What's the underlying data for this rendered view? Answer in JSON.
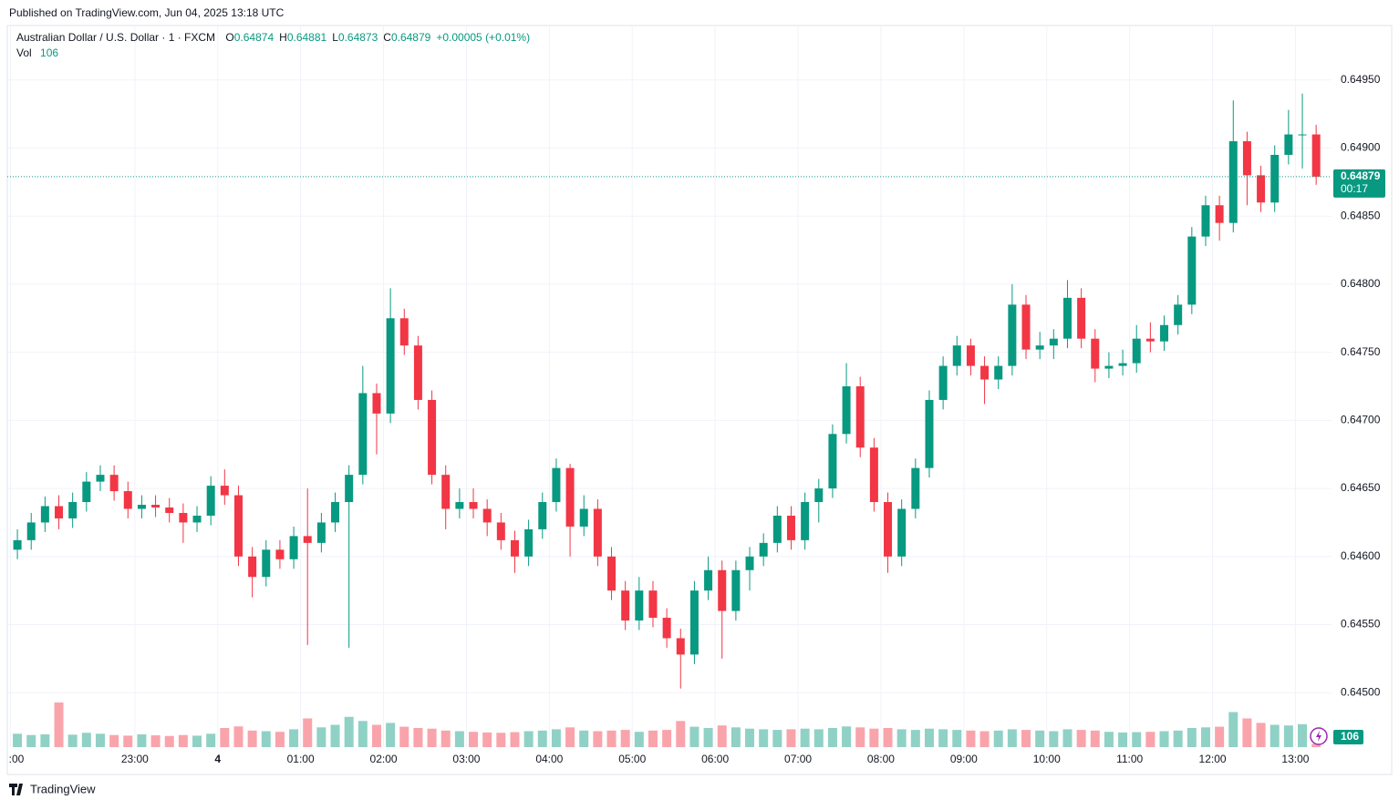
{
  "header": {
    "published": "Published on TradingView.com, Jun 04, 2025 13:18 UTC"
  },
  "chart_data": {
    "type": "candlestick",
    "title": "Australian Dollar / U.S. Dollar · 1 · FXCM",
    "legend": [
      {
        "name": "O",
        "value": "0.64874"
      },
      {
        "name": "H",
        "value": "0.64881"
      },
      {
        "name": "L",
        "value": "0.64873"
      },
      {
        "name": "C",
        "value": "0.64879"
      }
    ],
    "change": "+0.00005 (+0.01%)",
    "x": [
      "21:30",
      "21:40",
      "21:50",
      "22:00",
      "22:10",
      "22:20",
      "22:30",
      "22:40",
      "22:50",
      "23:00",
      "23:10",
      "23:20",
      "23:30",
      "23:40",
      "23:50",
      "00:00",
      "00:10",
      "00:20",
      "00:30",
      "00:40",
      "00:50",
      "01:00",
      "01:10",
      "01:20",
      "01:30",
      "01:40",
      "01:50",
      "02:00",
      "02:10",
      "02:20",
      "02:30",
      "02:40",
      "02:50",
      "03:00",
      "03:10",
      "03:20",
      "03:30",
      "03:40",
      "03:50",
      "04:00",
      "04:10",
      "04:20",
      "04:30",
      "04:40",
      "04:50",
      "05:00",
      "05:10",
      "05:20",
      "05:30",
      "05:40",
      "05:50",
      "06:00",
      "06:10",
      "06:20",
      "06:30",
      "06:40",
      "06:50",
      "07:00",
      "07:10",
      "07:20",
      "07:30",
      "07:40",
      "07:50",
      "08:00",
      "08:10",
      "08:20",
      "08:30",
      "08:40",
      "08:50",
      "09:00",
      "09:10",
      "09:20",
      "09:30",
      "09:40",
      "09:50",
      "10:00",
      "10:10",
      "10:20",
      "10:30",
      "10:40",
      "10:50",
      "11:00",
      "11:10",
      "11:20",
      "11:30",
      "11:40",
      "11:50",
      "12:00",
      "12:10",
      "12:20",
      "12:30",
      "12:40",
      "12:50",
      "13:00",
      "13:10"
    ],
    "open": [
      0.64605,
      0.64612,
      0.64625,
      0.64637,
      0.64628,
      0.6464,
      0.64655,
      0.6466,
      0.64648,
      0.64635,
      0.64638,
      0.64636,
      0.64632,
      0.64625,
      0.6463,
      0.64652,
      0.64645,
      0.646,
      0.64585,
      0.64605,
      0.64598,
      0.64615,
      0.6461,
      0.64625,
      0.6464,
      0.6466,
      0.6472,
      0.64705,
      0.64775,
      0.64755,
      0.64715,
      0.6466,
      0.64635,
      0.6464,
      0.64635,
      0.64625,
      0.64612,
      0.646,
      0.6462,
      0.6464,
      0.64665,
      0.64622,
      0.64635,
      0.646,
      0.64575,
      0.64553,
      0.64575,
      0.64555,
      0.6454,
      0.64528,
      0.64575,
      0.6459,
      0.6456,
      0.6459,
      0.646,
      0.6461,
      0.6463,
      0.64612,
      0.6464,
      0.6465,
      0.6469,
      0.64725,
      0.6468,
      0.6464,
      0.646,
      0.64635,
      0.64665,
      0.64715,
      0.6474,
      0.64755,
      0.6474,
      0.6473,
      0.6474,
      0.64785,
      0.64752,
      0.64755,
      0.6476,
      0.6479,
      0.6476,
      0.64738,
      0.6474,
      0.64742,
      0.6476,
      0.64758,
      0.6477,
      0.64785,
      0.64835,
      0.64858,
      0.64845,
      0.64905,
      0.6488,
      0.6486,
      0.64895,
      0.6491,
      0.6491
    ],
    "high": [
      0.6462,
      0.64632,
      0.64644,
      0.64645,
      0.64647,
      0.64662,
      0.64667,
      0.64667,
      0.64655,
      0.64645,
      0.64645,
      0.64643,
      0.64639,
      0.64637,
      0.64659,
      0.64664,
      0.64652,
      0.64607,
      0.64612,
      0.64612,
      0.64622,
      0.6465,
      0.64632,
      0.64647,
      0.64667,
      0.6474,
      0.64727,
      0.64797,
      0.64782,
      0.64762,
      0.64722,
      0.64667,
      0.6465,
      0.6465,
      0.64642,
      0.64632,
      0.64619,
      0.64627,
      0.64647,
      0.64672,
      0.64668,
      0.64645,
      0.64642,
      0.64607,
      0.64582,
      0.64585,
      0.64582,
      0.64562,
      0.64547,
      0.64582,
      0.646,
      0.64597,
      0.64597,
      0.64607,
      0.64617,
      0.64637,
      0.64637,
      0.64647,
      0.64657,
      0.64697,
      0.64742,
      0.64732,
      0.64687,
      0.64647,
      0.64642,
      0.64672,
      0.64722,
      0.64747,
      0.64762,
      0.6476,
      0.64747,
      0.64747,
      0.648,
      0.64792,
      0.64765,
      0.64767,
      0.64803,
      0.64797,
      0.64767,
      0.6475,
      0.64752,
      0.6477,
      0.64772,
      0.64777,
      0.64792,
      0.64842,
      0.64865,
      0.64865,
      0.64935,
      0.64912,
      0.64887,
      0.64902,
      0.64928,
      0.6494,
      0.64917
    ],
    "low": [
      0.64598,
      0.64605,
      0.64618,
      0.6462,
      0.64621,
      0.64633,
      0.64648,
      0.64641,
      0.64628,
      0.64628,
      0.64629,
      0.64625,
      0.6461,
      0.64618,
      0.64623,
      0.64638,
      0.64593,
      0.6457,
      0.64578,
      0.64591,
      0.64591,
      0.64535,
      0.64603,
      0.64618,
      0.64533,
      0.64653,
      0.64675,
      0.64698,
      0.64748,
      0.64708,
      0.64653,
      0.6462,
      0.64628,
      0.64628,
      0.64615,
      0.64605,
      0.64588,
      0.64593,
      0.64613,
      0.64633,
      0.646,
      0.64615,
      0.64593,
      0.64568,
      0.64546,
      0.64546,
      0.64548,
      0.64533,
      0.64503,
      0.64521,
      0.64568,
      0.64525,
      0.64553,
      0.64575,
      0.64593,
      0.64603,
      0.64605,
      0.64605,
      0.64625,
      0.64643,
      0.64683,
      0.64673,
      0.64633,
      0.64588,
      0.64593,
      0.64628,
      0.64658,
      0.64708,
      0.64733,
      0.64733,
      0.64712,
      0.64723,
      0.64733,
      0.64745,
      0.64745,
      0.64745,
      0.64753,
      0.64753,
      0.64728,
      0.64731,
      0.64733,
      0.64735,
      0.6475,
      0.64751,
      0.64763,
      0.64778,
      0.64828,
      0.64832,
      0.64838,
      0.64858,
      0.64853,
      0.64853,
      0.64888,
      0.64885,
      0.64873
    ],
    "close": [
      0.64612,
      0.64625,
      0.64637,
      0.64628,
      0.6464,
      0.64655,
      0.6466,
      0.64648,
      0.64635,
      0.64638,
      0.64636,
      0.64632,
      0.64625,
      0.6463,
      0.64652,
      0.64645,
      0.646,
      0.64585,
      0.64605,
      0.64598,
      0.64615,
      0.6461,
      0.64625,
      0.6464,
      0.6466,
      0.6472,
      0.64705,
      0.64775,
      0.64755,
      0.64715,
      0.6466,
      0.64635,
      0.6464,
      0.64635,
      0.64625,
      0.64612,
      0.646,
      0.6462,
      0.6464,
      0.64665,
      0.64622,
      0.64635,
      0.646,
      0.64575,
      0.64553,
      0.64575,
      0.64555,
      0.6454,
      0.64528,
      0.64575,
      0.6459,
      0.6456,
      0.6459,
      0.646,
      0.6461,
      0.6463,
      0.64612,
      0.6464,
      0.6465,
      0.6469,
      0.64725,
      0.6468,
      0.6464,
      0.646,
      0.64635,
      0.64665,
      0.64715,
      0.6474,
      0.64755,
      0.6474,
      0.6473,
      0.6474,
      0.64785,
      0.64752,
      0.64755,
      0.6476,
      0.6479,
      0.6476,
      0.64738,
      0.6474,
      0.64742,
      0.6476,
      0.64758,
      0.6477,
      0.64785,
      0.64835,
      0.64858,
      0.64845,
      0.64905,
      0.6488,
      0.6486,
      0.64895,
      0.6491,
      0.6491,
      0.64879
    ],
    "up_color": "#089981",
    "down_color": "#f23645",
    "volume": {
      "name": "Vol",
      "values": [
        420,
        380,
        400,
        1400,
        390,
        450,
        420,
        380,
        360,
        400,
        370,
        350,
        380,
        360,
        420,
        600,
        650,
        520,
        500,
        480,
        560,
        900,
        620,
        700,
        950,
        820,
        700,
        760,
        640,
        600,
        580,
        520,
        500,
        480,
        460,
        450,
        470,
        500,
        520,
        560,
        620,
        520,
        500,
        520,
        540,
        480,
        520,
        540,
        820,
        640,
        600,
        680,
        620,
        580,
        560,
        540,
        560,
        580,
        560,
        600,
        650,
        620,
        580,
        600,
        560,
        540,
        580,
        560,
        540,
        520,
        500,
        520,
        560,
        540,
        520,
        500,
        560,
        540,
        520,
        480,
        460,
        470,
        480,
        500,
        520,
        600,
        620,
        640,
        1100,
        900,
        760,
        700,
        680,
        720,
        106
      ]
    },
    "ylim": [
      0.6446,
      0.6499
    ],
    "yticks": [
      {
        "value": 0.6495,
        "label": "0.64950"
      },
      {
        "value": 0.649,
        "label": "0.64900"
      },
      {
        "value": 0.6485,
        "label": "0.64850"
      },
      {
        "value": 0.648,
        "label": "0.64800"
      },
      {
        "value": 0.6475,
        "label": "0.64750"
      },
      {
        "value": 0.647,
        "label": "0.64700"
      },
      {
        "value": 0.6465,
        "label": "0.64650"
      },
      {
        "value": 0.646,
        "label": "0.64600"
      },
      {
        "value": 0.6455,
        "label": "0.64550"
      },
      {
        "value": 0.645,
        "label": "0.64500"
      }
    ],
    "xticks": [
      {
        "value": "21:30",
        "label": ":00"
      },
      "23:00",
      {
        "value": "00:00",
        "label": "4"
      },
      "01:00",
      "02:00",
      "03:00",
      "04:00",
      "05:00",
      "06:00",
      "07:00",
      "08:00",
      "09:00",
      "10:00",
      "11:00",
      "12:00",
      "13:00"
    ],
    "grid": true,
    "last_price": {
      "value": 0.64879,
      "label": "0.64879"
    },
    "countdown": "00:17"
  },
  "footer": {
    "brand": "TradingView"
  }
}
